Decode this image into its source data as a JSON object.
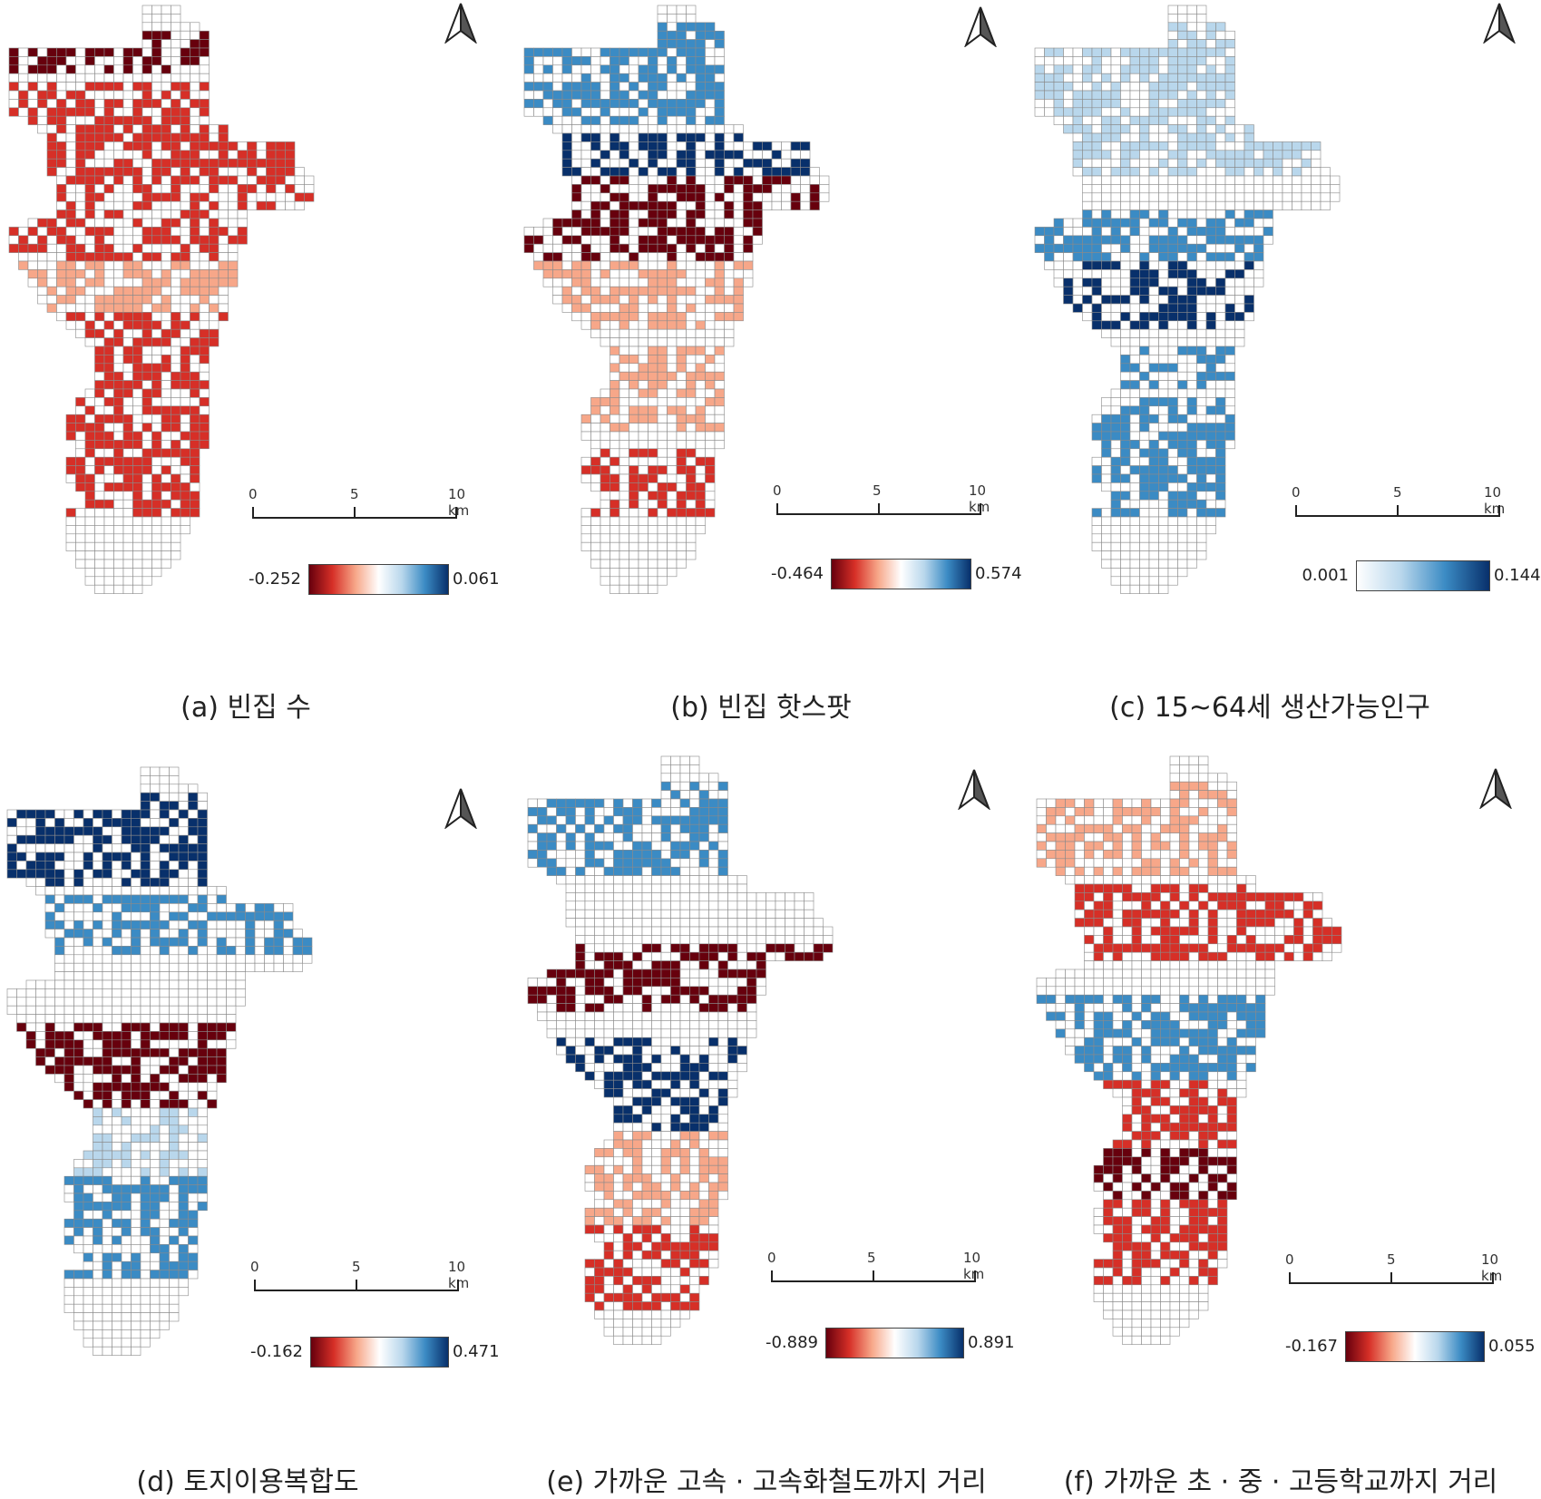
{
  "colors": {
    "red_dark": "#67000d",
    "red": "#d62f27",
    "red_light": "#f7a789",
    "white": "#ffffff",
    "blue_light": "#b9d7ec",
    "blue": "#3b8bc4",
    "blue_dark": "#08306b",
    "grid_line": "#8a8a8a"
  },
  "scale_bar": {
    "labels": [
      "0",
      "5",
      "10 km"
    ]
  },
  "panels": [
    {
      "id": "a",
      "caption": "(a) 빈집 수",
      "legend": {
        "min": "-0.252",
        "max": "0.061",
        "ramp": "diverging"
      }
    },
    {
      "id": "b",
      "caption": "(b) 빈집 핫스팟",
      "legend": {
        "min": "-0.464",
        "max": "0.574",
        "ramp": "diverging"
      }
    },
    {
      "id": "c",
      "caption": "(c) 15~64세 생산가능인구",
      "legend": {
        "min": "0.001",
        "max": "0.144",
        "ramp": "sequential-blue"
      }
    },
    {
      "id": "d",
      "caption": "(d) 토지이용복합도",
      "legend": {
        "min": "-0.162",
        "max": "0.471",
        "ramp": "diverging"
      }
    },
    {
      "id": "e",
      "caption": "(e) 가까운 고속 · 고속화철도까지 거리",
      "legend": {
        "min": "-0.889",
        "max": "0.891",
        "ramp": "diverging"
      }
    },
    {
      "id": "f",
      "caption": "(f) 가까운 초 · 중 · 고등학교까지 거리",
      "legend": {
        "min": "-0.167",
        "max": "0.055",
        "ramp": "diverging"
      }
    }
  ]
}
